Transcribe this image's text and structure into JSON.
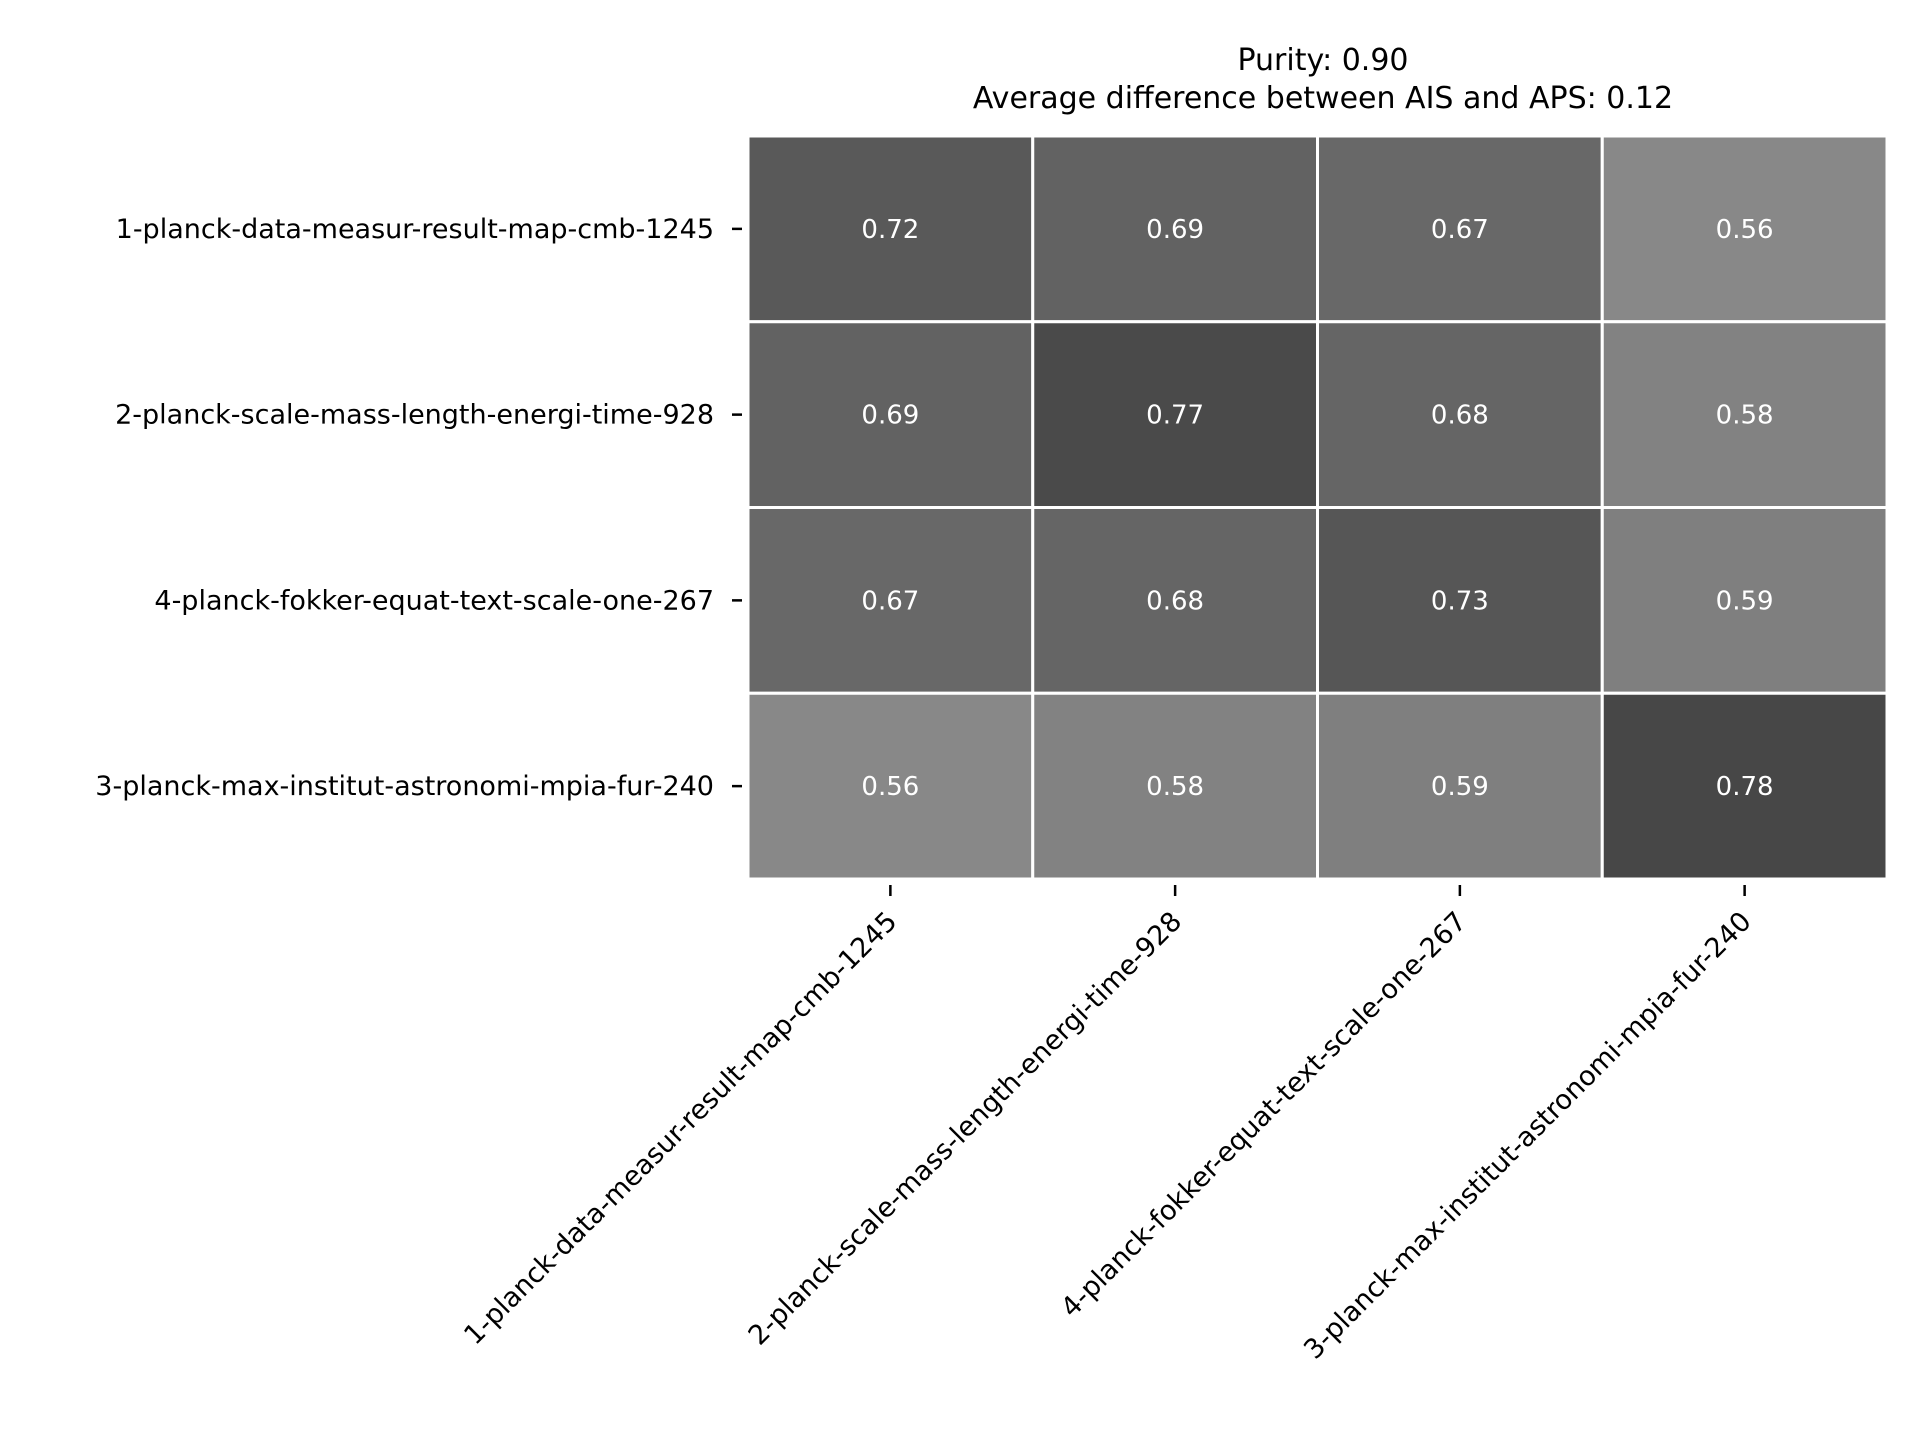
{
  "chart_data": {
    "type": "heatmap",
    "title": "Purity: 0.90",
    "subtitle": "Average difference between AIS and APS: 0.12",
    "rows": [
      "1-planck-data-measur-result-map-cmb-1245",
      "2-planck-scale-mass-length-energi-time-928",
      "4-planck-fokker-equat-text-scale-one-267",
      "3-planck-max-institut-astronomi-mpia-fur-240"
    ],
    "columns": [
      "1-planck-data-measur-result-map-cmb-1245",
      "2-planck-scale-mass-length-energi-time-928",
      "4-planck-fokker-equat-text-scale-one-267",
      "3-planck-max-institut-astronomi-mpia-fur-240"
    ],
    "values": [
      [
        0.72,
        0.69,
        0.67,
        0.56
      ],
      [
        0.69,
        0.77,
        0.68,
        0.58
      ],
      [
        0.67,
        0.68,
        0.73,
        0.59
      ],
      [
        0.56,
        0.58,
        0.59,
        0.78
      ]
    ],
    "value_labels": [
      [
        "0.72",
        "0.69",
        "0.67",
        "0.56"
      ],
      [
        "0.69",
        "0.77",
        "0.68",
        "0.58"
      ],
      [
        "0.67",
        "0.68",
        "0.73",
        "0.59"
      ],
      [
        "0.56",
        "0.58",
        "0.59",
        "0.78"
      ]
    ],
    "xlabel": "",
    "ylabel": "",
    "colors": {
      "cell_low": "#888888",
      "cell_high": "#474747",
      "cell_border": "#ffffff",
      "cell_text": "#ffffff",
      "text": "#000000"
    }
  }
}
